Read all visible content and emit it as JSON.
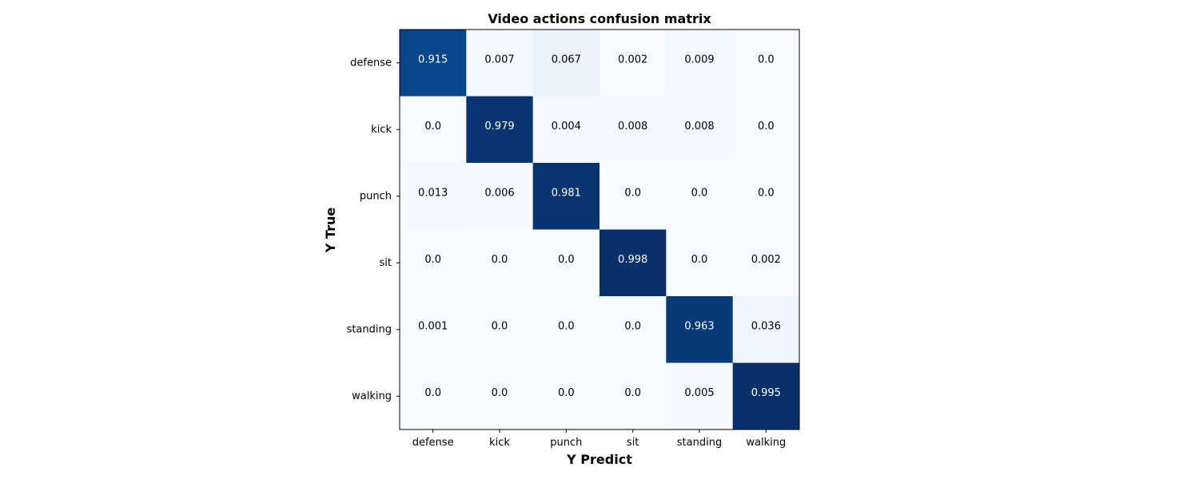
{
  "chart_data": {
    "type": "heatmap",
    "title": "Video actions confusion matrix",
    "xlabel": "Y Predict",
    "ylabel": "Y True",
    "x_categories": [
      "defense",
      "kick",
      "punch",
      "sit",
      "standing",
      "walking"
    ],
    "y_categories": [
      "defense",
      "kick",
      "punch",
      "sit",
      "standing",
      "walking"
    ],
    "values": [
      [
        0.915,
        0.007,
        0.067,
        0.002,
        0.009,
        0.0
      ],
      [
        0.0,
        0.979,
        0.004,
        0.008,
        0.008,
        0.0
      ],
      [
        0.013,
        0.006,
        0.981,
        0.0,
        0.0,
        0.0
      ],
      [
        0.0,
        0.0,
        0.0,
        0.998,
        0.0,
        0.002
      ],
      [
        0.001,
        0.0,
        0.0,
        0.0,
        0.963,
        0.036
      ],
      [
        0.0,
        0.0,
        0.0,
        0.0,
        0.005,
        0.995
      ]
    ],
    "cell_labels": [
      [
        "0.915",
        "0.007",
        "0.067",
        "0.002",
        "0.009",
        "0.0"
      ],
      [
        "0.0",
        "0.979",
        "0.004",
        "0.008",
        "0.008",
        "0.0"
      ],
      [
        "0.013",
        "0.006",
        "0.981",
        "0.0",
        "0.0",
        "0.0"
      ],
      [
        "0.0",
        "0.0",
        "0.0",
        "0.998",
        "0.0",
        "0.002"
      ],
      [
        "0.001",
        "0.0",
        "0.0",
        "0.0",
        "0.963",
        "0.036"
      ],
      [
        "0.0",
        "0.0",
        "0.0",
        "0.0",
        "0.005",
        "0.995"
      ]
    ],
    "colormap": "Blues",
    "color_low": "#f7fbff",
    "color_high": "#08306b",
    "grid": false
  }
}
